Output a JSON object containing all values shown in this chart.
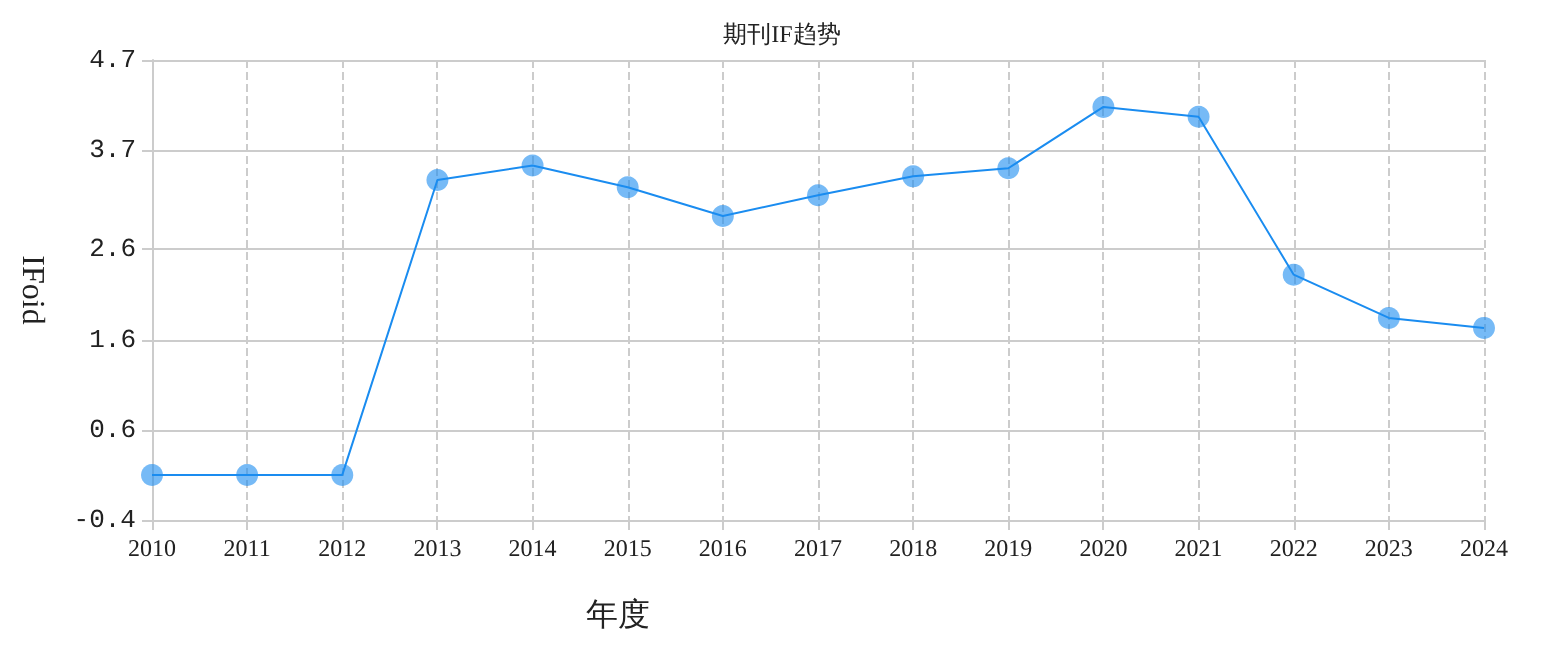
{
  "chart_data": {
    "type": "line",
    "title": "期刊IF趋势",
    "xlabel": "年度",
    "ylabel": "IFoid",
    "categories": [
      "2010",
      "2011",
      "2012",
      "2013",
      "2014",
      "2015",
      "2016",
      "2017",
      "2018",
      "2019",
      "2020",
      "2021",
      "2022",
      "2023",
      "2024"
    ],
    "series": [
      {
        "color": "#1a8cf0",
        "values": [
          0.1,
          0.1,
          0.1,
          3.37,
          3.53,
          3.29,
          2.97,
          3.2,
          3.41,
          3.5,
          4.18,
          4.07,
          2.32,
          1.84,
          1.73
        ]
      }
    ],
    "ylim": [
      -0.4,
      4.7
    ],
    "yticks": [
      -0.4,
      0.6,
      1.6,
      2.6,
      3.7,
      4.7
    ],
    "grid": true,
    "marker": "circle",
    "line_style": "solid"
  }
}
